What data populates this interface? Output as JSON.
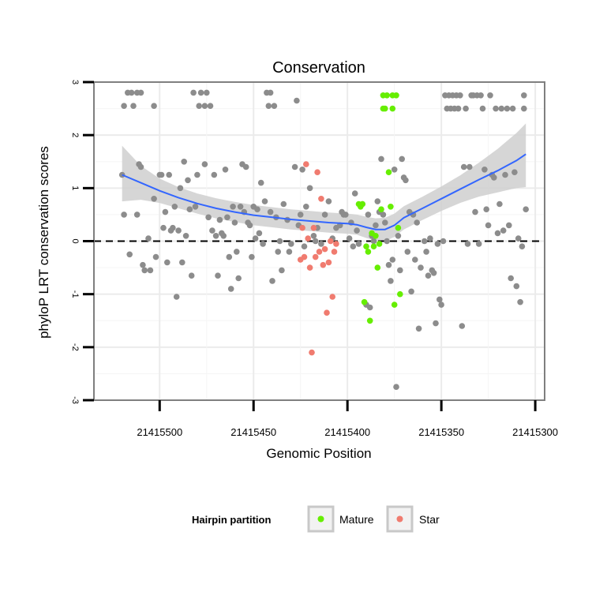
{
  "chart_data": {
    "type": "scatter",
    "title": "Conservation",
    "xlabel": "Genomic Position",
    "ylabel": "phyloP LRT conservation scores",
    "x_reversed": true,
    "xlim": [
      21415535,
      21415295
    ],
    "ylim": [
      -3,
      3
    ],
    "x_ticks": [
      21415500,
      21415450,
      21415400,
      21415350,
      21415300
    ],
    "x_tick_labels": [
      "21415500",
      "21415450",
      "21415400",
      "21415350",
      "21415300"
    ],
    "y_ticks": [
      -3,
      -2,
      -1,
      0,
      1,
      2,
      3
    ],
    "y_tick_labels": [
      "-3",
      "-2",
      "-1",
      "0",
      "1",
      "2",
      "3"
    ],
    "reference_line": {
      "y": 0,
      "style": "dashed"
    },
    "legend": {
      "title": "Hairpin partition",
      "placement": "bottom",
      "entries": [
        {
          "name": "Mature",
          "color": "#66ee00"
        },
        {
          "name": "Star",
          "color": "#f07b6f"
        }
      ]
    },
    "colors": {
      "other": "#8c8c8c",
      "smooth": "#3366ff",
      "band": "#cfcfcf",
      "mature": "#66ee00",
      "star": "#f07b6f"
    },
    "series": [
      {
        "name": "Other",
        "color": "#8c8c8c",
        "points": [
          [
            21415520,
            1.25
          ],
          [
            21415519,
            2.55
          ],
          [
            21415517,
            2.8
          ],
          [
            21415515,
            2.8
          ],
          [
            21415514,
            2.55
          ],
          [
            21415512,
            2.8
          ],
          [
            21415510,
            2.8
          ],
          [
            21415519,
            0.5
          ],
          [
            21415516,
            -0.25
          ],
          [
            21415512,
            0.5
          ],
          [
            21415511,
            1.45
          ],
          [
            21415510,
            1.4
          ],
          [
            21415509,
            -0.45
          ],
          [
            21415508,
            -0.55
          ],
          [
            21415506,
            0.05
          ],
          [
            21415505,
            -0.55
          ],
          [
            21415503,
            2.55
          ],
          [
            21415503,
            0.8
          ],
          [
            21415502,
            -0.3
          ],
          [
            21415500,
            1.25
          ],
          [
            21415499,
            1.25
          ],
          [
            21415498,
            0.25
          ],
          [
            21415497,
            0.55
          ],
          [
            21415496,
            -0.4
          ],
          [
            21415495,
            1.25
          ],
          [
            21415494,
            0.2
          ],
          [
            21415493,
            0.25
          ],
          [
            21415492,
            0.65
          ],
          [
            21415491,
            -1.05
          ],
          [
            21415490,
            0.2
          ],
          [
            21415489,
            1.0
          ],
          [
            21415488,
            -0.4
          ],
          [
            21415487,
            1.5
          ],
          [
            21415486,
            0.1
          ],
          [
            21415485,
            1.15
          ],
          [
            21415484,
            0.6
          ],
          [
            21415483,
            -0.65
          ],
          [
            21415482,
            2.8
          ],
          [
            21415481,
            0.65
          ],
          [
            21415480,
            1.25
          ],
          [
            21415479,
            2.55
          ],
          [
            21415478,
            2.8
          ],
          [
            21415476,
            1.45
          ],
          [
            21415476,
            2.55
          ],
          [
            21415475,
            2.8
          ],
          [
            21415474,
            0.45
          ],
          [
            21415473,
            2.55
          ],
          [
            21415472,
            0.2
          ],
          [
            21415471,
            1.25
          ],
          [
            21415470,
            0.1
          ],
          [
            21415469,
            -0.65
          ],
          [
            21415468,
            0.4
          ],
          [
            21415467,
            0.15
          ],
          [
            21415466,
            0.1
          ],
          [
            21415465,
            1.35
          ],
          [
            21415464,
            0.45
          ],
          [
            21415463,
            -0.3
          ],
          [
            21415462,
            -0.9
          ],
          [
            21415461,
            0.65
          ],
          [
            21415460,
            0.35
          ],
          [
            21415459,
            -0.2
          ],
          [
            21415458,
            -0.7
          ],
          [
            21415457,
            0.65
          ],
          [
            21415456,
            1.45
          ],
          [
            21415455,
            0.55
          ],
          [
            21415454,
            1.4
          ],
          [
            21415453,
            0.35
          ],
          [
            21415452,
            0.3
          ],
          [
            21415451,
            -0.3
          ],
          [
            21415450,
            0.65
          ],
          [
            21415449,
            0.05
          ],
          [
            21415448,
            0.6
          ],
          [
            21415447,
            0.15
          ],
          [
            21415446,
            1.1
          ],
          [
            21415445,
            -0.05
          ],
          [
            21415444,
            0.75
          ],
          [
            21415443,
            2.8
          ],
          [
            21415442,
            2.55
          ],
          [
            21415441,
            0.55
          ],
          [
            21415441,
            2.8
          ],
          [
            21415440,
            -0.75
          ],
          [
            21415439,
            2.55
          ],
          [
            21415438,
            0.45
          ],
          [
            21415437,
            -0.2
          ],
          [
            21415436,
            0.0
          ],
          [
            21415435,
            -0.55
          ],
          [
            21415434,
            0.7
          ],
          [
            21415432,
            0.4
          ],
          [
            21415431,
            -0.2
          ],
          [
            21415430,
            -0.05
          ],
          [
            21415428,
            1.4
          ],
          [
            21415427,
            2.65
          ],
          [
            21415426,
            0.3
          ],
          [
            21415425,
            0.5
          ],
          [
            21415424,
            1.35
          ],
          [
            21415423,
            -0.1
          ],
          [
            21415422,
            0.65
          ],
          [
            21415420,
            1.0
          ],
          [
            21415418,
            0.1
          ],
          [
            21415417,
            0.0
          ],
          [
            21415416,
            0.25
          ],
          [
            21415414,
            -0.05
          ],
          [
            21415412,
            0.5
          ],
          [
            21415410,
            0.75
          ],
          [
            21415408,
            0.05
          ],
          [
            21415406,
            0.25
          ],
          [
            21415404,
            0.3
          ],
          [
            21415403,
            0.55
          ],
          [
            21415402,
            0.5
          ],
          [
            21415401,
            0.5
          ],
          [
            21415399,
            0.05
          ],
          [
            21415398,
            0.35
          ],
          [
            21415397,
            -0.1
          ],
          [
            21415396,
            0.9
          ],
          [
            21415395,
            0.2
          ],
          [
            21415394,
            -0.05
          ],
          [
            21415392,
            0.7
          ],
          [
            21415390,
            -1.2
          ],
          [
            21415389,
            0.5
          ],
          [
            21415388,
            -1.25
          ],
          [
            21415387,
            0.1
          ],
          [
            21415386,
            0.0
          ],
          [
            21415385,
            0.3
          ],
          [
            21415384,
            0.75
          ],
          [
            21415383,
            0.55
          ],
          [
            21415382,
            1.55
          ],
          [
            21415381,
            0.5
          ],
          [
            21415380,
            0.35
          ],
          [
            21415379,
            0.0
          ],
          [
            21415378,
            -0.45
          ],
          [
            21415377,
            -0.75
          ],
          [
            21415376,
            -0.35
          ],
          [
            21415375,
            1.35
          ],
          [
            21415374,
            -2.75
          ],
          [
            21415373,
            0.1
          ],
          [
            21415372,
            -0.55
          ],
          [
            21415371,
            1.55
          ],
          [
            21415370,
            1.2
          ],
          [
            21415369,
            1.15
          ],
          [
            21415368,
            -0.2
          ],
          [
            21415367,
            0.55
          ],
          [
            21415366,
            -0.95
          ],
          [
            21415365,
            0.5
          ],
          [
            21415364,
            -0.35
          ],
          [
            21415363,
            0.35
          ],
          [
            21415362,
            -1.65
          ],
          [
            21415361,
            -0.5
          ],
          [
            21415359,
            0.0
          ],
          [
            21415358,
            -0.2
          ],
          [
            21415357,
            -0.65
          ],
          [
            21415356,
            0.05
          ],
          [
            21415355,
            -0.55
          ],
          [
            21415354,
            -0.6
          ],
          [
            21415353,
            -1.55
          ],
          [
            21415352,
            -0.05
          ],
          [
            21415351,
            -1.1
          ],
          [
            21415350,
            -1.2
          ],
          [
            21415349,
            0.0
          ],
          [
            21415348,
            2.75
          ],
          [
            21415347,
            2.5
          ],
          [
            21415346,
            2.75
          ],
          [
            21415345,
            2.5
          ],
          [
            21415344,
            2.75
          ],
          [
            21415343,
            2.5
          ],
          [
            21415342,
            2.75
          ],
          [
            21415341,
            2.5
          ],
          [
            21415340,
            2.75
          ],
          [
            21415339,
            -1.6
          ],
          [
            21415338,
            1.4
          ],
          [
            21415337,
            2.5
          ],
          [
            21415336,
            -0.05
          ],
          [
            21415335,
            1.4
          ],
          [
            21415334,
            2.75
          ],
          [
            21415333,
            2.75
          ],
          [
            21415332,
            0.55
          ],
          [
            21415331,
            2.75
          ],
          [
            21415330,
            -0.05
          ],
          [
            21415329,
            2.75
          ],
          [
            21415328,
            2.5
          ],
          [
            21415327,
            1.35
          ],
          [
            21415326,
            0.6
          ],
          [
            21415325,
            0.3
          ],
          [
            21415324,
            2.75
          ],
          [
            21415323,
            1.25
          ],
          [
            21415322,
            1.2
          ],
          [
            21415321,
            2.5
          ],
          [
            21415320,
            0.15
          ],
          [
            21415319,
            0.7
          ],
          [
            21415318,
            2.5
          ],
          [
            21415317,
            0.2
          ],
          [
            21415316,
            1.25
          ],
          [
            21415315,
            2.5
          ],
          [
            21415314,
            0.3
          ],
          [
            21415313,
            -0.7
          ],
          [
            21415312,
            2.5
          ],
          [
            21415311,
            1.3
          ],
          [
            21415310,
            -0.85
          ],
          [
            21415309,
            0.05
          ],
          [
            21415308,
            -1.15
          ],
          [
            21415307,
            -0.1
          ],
          [
            21415306,
            2.5
          ],
          [
            21415306,
            2.75
          ],
          [
            21415305,
            0.6
          ]
        ]
      },
      {
        "name": "Mature",
        "color": "#66ee00",
        "points": [
          [
            21415394,
            0.7
          ],
          [
            21415393,
            0.65
          ],
          [
            21415392,
            0.7
          ],
          [
            21415391,
            -1.15
          ],
          [
            21415390,
            -0.1
          ],
          [
            21415389,
            -0.2
          ],
          [
            21415388,
            -1.5
          ],
          [
            21415387,
            0.15
          ],
          [
            21415386,
            -0.1
          ],
          [
            21415385,
            0.1
          ],
          [
            21415384,
            -0.5
          ],
          [
            21415383,
            -0.05
          ],
          [
            21415382,
            0.6
          ],
          [
            21415381,
            2.75
          ],
          [
            21415381,
            2.5
          ],
          [
            21415380,
            2.5
          ],
          [
            21415379,
            2.75
          ],
          [
            21415378,
            1.3
          ],
          [
            21415377,
            0.65
          ],
          [
            21415376,
            2.75
          ],
          [
            21415376,
            2.5
          ],
          [
            21415375,
            -1.2
          ],
          [
            21415374,
            2.75
          ],
          [
            21415373,
            0.25
          ],
          [
            21415372,
            -1.0
          ]
        ]
      },
      {
        "name": "Star",
        "color": "#f07b6f",
        "points": [
          [
            21415425,
            -0.35
          ],
          [
            21415424,
            0.25
          ],
          [
            21415423,
            -0.3
          ],
          [
            21415422,
            1.45
          ],
          [
            21415421,
            0.05
          ],
          [
            21415420,
            -0.5
          ],
          [
            21415419,
            -2.1
          ],
          [
            21415418,
            0.25
          ],
          [
            21415417,
            -0.3
          ],
          [
            21415416,
            1.3
          ],
          [
            21415415,
            -0.2
          ],
          [
            21415414,
            0.8
          ],
          [
            21415413,
            -0.45
          ],
          [
            21415412,
            -0.15
          ],
          [
            21415411,
            -1.35
          ],
          [
            21415410,
            -0.4
          ],
          [
            21415409,
            0.0
          ],
          [
            21415408,
            -1.05
          ],
          [
            21415407,
            -0.2
          ],
          [
            21415406,
            -0.05
          ]
        ]
      }
    ],
    "smooth": {
      "x": [
        21415520,
        21415510,
        21415500,
        21415490,
        21415480,
        21415470,
        21415460,
        21415450,
        21415440,
        21415430,
        21415420,
        21415410,
        21415400,
        21415395,
        21415390,
        21415385,
        21415380,
        21415375,
        21415370,
        21415360,
        21415350,
        21415340,
        21415330,
        21415320,
        21415310,
        21415305
      ],
      "y": [
        1.25,
        1.1,
        0.95,
        0.82,
        0.71,
        0.62,
        0.55,
        0.49,
        0.45,
        0.41,
        0.38,
        0.35,
        0.33,
        0.31,
        0.26,
        0.22,
        0.22,
        0.3,
        0.44,
        0.62,
        0.8,
        0.98,
        1.16,
        1.33,
        1.52,
        1.64
      ],
      "lower": [
        0.75,
        0.78,
        0.72,
        0.62,
        0.52,
        0.43,
        0.36,
        0.3,
        0.26,
        0.22,
        0.19,
        0.16,
        0.14,
        0.12,
        0.06,
        0.01,
        0.0,
        0.08,
        0.22,
        0.4,
        0.57,
        0.72,
        0.84,
        0.92,
        1.0,
        1.02
      ],
      "upper": [
        1.8,
        1.42,
        1.18,
        1.02,
        0.9,
        0.81,
        0.74,
        0.68,
        0.64,
        0.6,
        0.57,
        0.54,
        0.52,
        0.5,
        0.46,
        0.43,
        0.44,
        0.52,
        0.66,
        0.84,
        1.03,
        1.24,
        1.48,
        1.74,
        2.04,
        2.22
      ]
    }
  }
}
